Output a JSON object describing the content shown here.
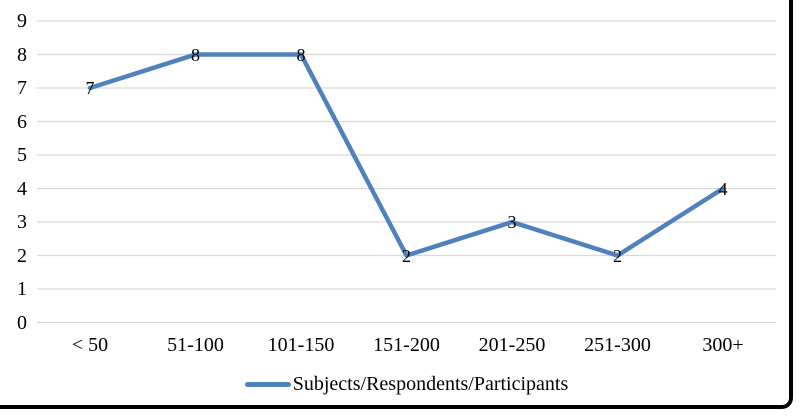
{
  "chart_data": {
    "type": "line",
    "title": "",
    "xlabel": "",
    "ylabel": "",
    "categories": [
      "< 50",
      "51-100",
      "101-150",
      "151-200",
      "201-250",
      "251-300",
      "300+"
    ],
    "series": [
      {
        "name": "Subjects/Respondents/Participants",
        "values": [
          7,
          8,
          8,
          2,
          3,
          2,
          4
        ]
      }
    ],
    "ylim": [
      0,
      9
    ],
    "ytick_step": 1,
    "grid": true,
    "data_labels": true,
    "legend_position": "bottom-center",
    "colors": {
      "line": "#4F81BD",
      "gridline": "#D9D9D9",
      "text": "#000000",
      "frame_border": "#000000",
      "background": "#FFFFFF"
    }
  }
}
